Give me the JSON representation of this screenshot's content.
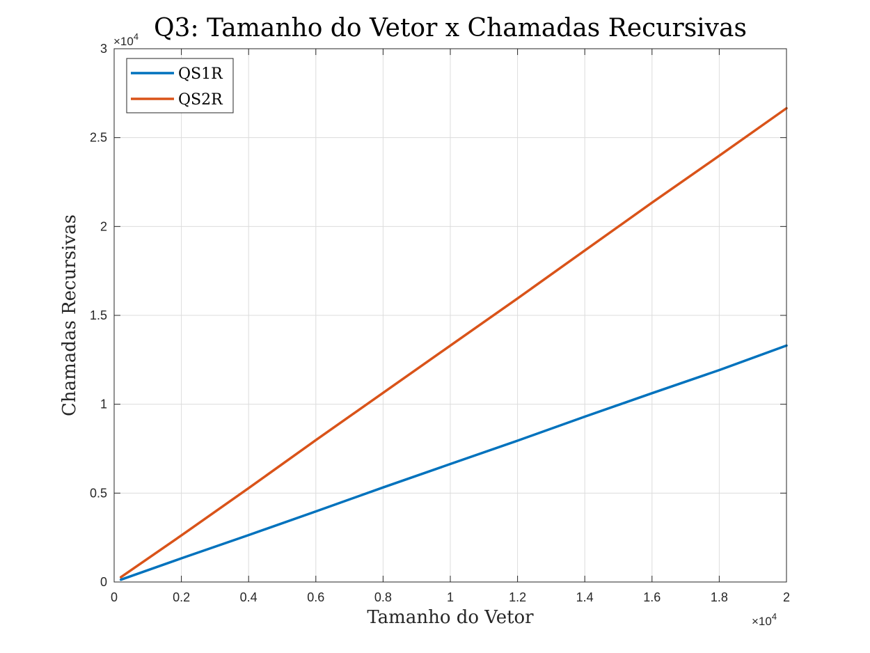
{
  "chart_data": {
    "type": "line",
    "title": "Q3: Tamanho do Vetor x Chamadas Recursivas",
    "xlabel": "Tamanho do Vetor",
    "ylabel": "Chamadas Recursivas",
    "x_multiplier": "×10⁴",
    "x_multiplier_base": "×10",
    "x_multiplier_exp": "4",
    "y_multiplier_base": "×10",
    "y_multiplier_exp": "4",
    "xlim": [
      0,
      20000
    ],
    "ylim": [
      0,
      30000
    ],
    "x_tick_values": [
      0,
      2000,
      4000,
      6000,
      8000,
      10000,
      12000,
      14000,
      16000,
      18000,
      20000
    ],
    "x_tick_labels": [
      "0",
      "0.2",
      "0.4",
      "0.6",
      "0.8",
      "1",
      "1.2",
      "1.4",
      "1.6",
      "1.8",
      "2"
    ],
    "y_tick_values": [
      0,
      5000,
      10000,
      15000,
      20000,
      25000,
      30000
    ],
    "y_tick_labels": [
      "0",
      "0.5",
      "1",
      "1.5",
      "2",
      "2.5",
      "3"
    ],
    "grid": true,
    "legend_position": "top-left",
    "x": [
      200,
      2000,
      4000,
      6000,
      8000,
      10000,
      12000,
      14000,
      16000,
      18000,
      20000
    ],
    "series": [
      {
        "name": "QS1R",
        "color": "#0072BD",
        "values": [
          130,
          1330,
          2640,
          3970,
          5320,
          6640,
          7950,
          9300,
          10620,
          11920,
          13300
        ]
      },
      {
        "name": "QS2R",
        "color": "#D95319",
        "values": [
          270,
          2620,
          5280,
          7980,
          10640,
          13300,
          15950,
          18650,
          21340,
          23980,
          26650
        ]
      }
    ]
  }
}
